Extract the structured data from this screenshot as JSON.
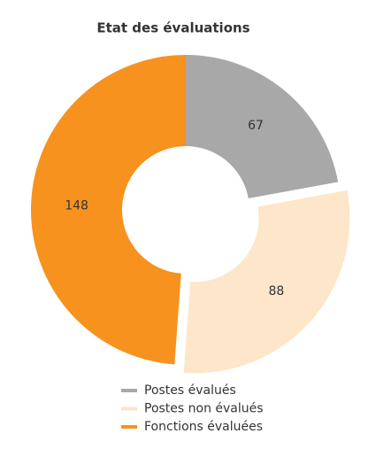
{
  "chart_data": {
    "type": "pie",
    "title": "Etat des évaluations",
    "categories": [
      "Postes évalués",
      "Postes non évalués",
      "Fonctions évaluées"
    ],
    "values": [
      67,
      88,
      148
    ],
    "colors": [
      "#a8a8a8",
      "#fde6c9",
      "#f7921e"
    ],
    "legend": "bottom"
  }
}
